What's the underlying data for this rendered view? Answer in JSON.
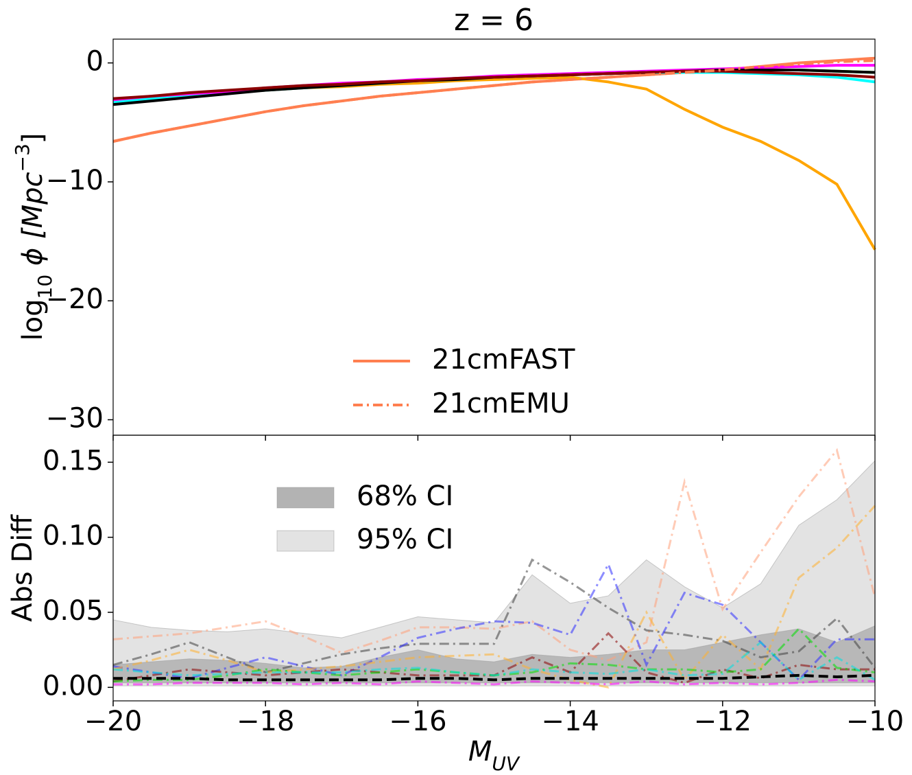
{
  "chart_data": [
    {
      "type": "line",
      "title": "z = 6",
      "ylabel": [
        "log",
        "10",
        " ϕ [Mpc",
        "−3",
        "]"
      ],
      "x": [
        -20,
        -19.5,
        -19,
        -18.5,
        -18,
        -17.5,
        -17,
        -16.5,
        -16,
        -15.5,
        -15,
        -14.5,
        -14,
        -13.5,
        -13,
        -12.5,
        -12,
        -11.5,
        -11,
        -10.5,
        -10
      ],
      "xlim": [
        -20,
        -10
      ],
      "ylim": [
        -31.3,
        2
      ],
      "yticks": [
        {
          "value": 0,
          "label": "0"
        },
        {
          "value": -10,
          "label": "−10"
        },
        {
          "value": -20,
          "label": "−20"
        },
        {
          "value": -30,
          "label": "−30"
        }
      ],
      "legend": "lower center",
      "series": [
        {
          "name": "21cmFAST",
          "color": "#ff7f50",
          "style": "solid",
          "values": [
            -6.6,
            -5.9,
            -5.3,
            -4.7,
            -4.1,
            -3.6,
            -3.2,
            -2.8,
            -2.5,
            -2.2,
            -1.9,
            -1.6,
            -1.4,
            -1.2,
            -1.0,
            -0.8,
            -0.6,
            -0.3,
            0.0,
            0.2,
            0.4
          ]
        },
        {
          "color": "#ffa500",
          "style": "solid",
          "values": [
            -3.1,
            -2.9,
            -2.7,
            -2.5,
            -2.3,
            -2.1,
            -2.0,
            -1.8,
            -1.7,
            -1.5,
            -1.4,
            -1.3,
            -1.2,
            -1.6,
            -2.2,
            -3.9,
            -5.4,
            -6.6,
            -8.2,
            -10.2,
            -15.7
          ]
        },
        {
          "color": "#00ff00",
          "style": "solid",
          "values": [
            -3.2,
            -2.9,
            -2.7,
            -2.4,
            -2.2,
            -2.0,
            -1.8,
            -1.6,
            -1.5,
            -1.3,
            -1.2,
            -1.1,
            -1.0,
            -0.9,
            -0.8,
            -0.7,
            -0.6,
            -0.6,
            -0.6,
            -0.7,
            -0.8
          ]
        },
        {
          "color": "#00ffff",
          "style": "solid",
          "values": [
            -3.3,
            -3.0,
            -2.7,
            -2.5,
            -2.3,
            -2.1,
            -1.9,
            -1.7,
            -1.5,
            -1.4,
            -1.2,
            -1.1,
            -1.0,
            -0.9,
            -0.8,
            -0.8,
            -0.8,
            -0.9,
            -1.0,
            -1.2,
            -1.6
          ]
        },
        {
          "color": "#ff00ff",
          "style": "solid",
          "values": [
            -3.1,
            -2.8,
            -2.6,
            -2.4,
            -2.1,
            -1.9,
            -1.7,
            -1.6,
            -1.4,
            -1.3,
            -1.1,
            -1.0,
            -0.9,
            -0.8,
            -0.7,
            -0.6,
            -0.5,
            -0.4,
            -0.3,
            -0.2,
            -0.2
          ]
        },
        {
          "color": "#000000",
          "style": "solid",
          "values": [
            -3.5,
            -3.2,
            -2.9,
            -2.6,
            -2.3,
            -2.1,
            -1.9,
            -1.7,
            -1.5,
            -1.4,
            -1.2,
            -1.1,
            -1.0,
            -0.9,
            -0.8,
            -0.7,
            -0.6,
            -0.6,
            -0.6,
            -0.7,
            -0.8
          ]
        },
        {
          "color": "#8b0000",
          "style": "solid",
          "values": [
            -3.0,
            -2.8,
            -2.5,
            -2.3,
            -2.1,
            -1.9,
            -1.8,
            -1.6,
            -1.5,
            -1.3,
            -1.2,
            -1.1,
            -1.0,
            -0.9,
            -0.8,
            -0.7,
            -0.7,
            -0.8,
            -0.9,
            -1.0,
            -1.2
          ]
        },
        {
          "name": "21cmEMU",
          "color": "#ff7f50",
          "style": "dashdot",
          "values": [
            -6.6,
            -5.9,
            -5.3,
            -4.7,
            -4.1,
            -3.6,
            -3.2,
            -2.8,
            -2.5,
            -2.2,
            -1.9,
            -1.6,
            -1.4,
            -1.2,
            -1.0,
            -0.8,
            -0.6,
            -0.3,
            -0.1,
            0.1,
            0.2
          ]
        }
      ]
    },
    {
      "type": "line",
      "xlabel": [
        "M",
        "UV"
      ],
      "ylabel": "Abs Diff",
      "x": [
        -20,
        -19.5,
        -19,
        -18.5,
        -18,
        -17.5,
        -17,
        -16.5,
        -16,
        -15.5,
        -15,
        -14.5,
        -14,
        -13.5,
        -13,
        -12.5,
        -12,
        -11.5,
        -11,
        -10.5,
        -10
      ],
      "xlim": [
        -20,
        -10
      ],
      "xticks": [
        {
          "value": -20,
          "label": "−20"
        },
        {
          "value": -18,
          "label": "−18"
        },
        {
          "value": -16,
          "label": "−16"
        },
        {
          "value": -14,
          "label": "−14"
        },
        {
          "value": -12,
          "label": "−12"
        },
        {
          "value": -10,
          "label": "−10"
        }
      ],
      "ylim": [
        -0.009,
        0.168
      ],
      "yticks": [
        {
          "value": 0,
          "label": "0.00"
        },
        {
          "value": 0.05,
          "label": "0.05"
        },
        {
          "value": 0.1,
          "label": "0.10"
        },
        {
          "value": 0.15,
          "label": "0.15"
        }
      ],
      "legend": "upper left",
      "bands": [
        {
          "name": "68% CI",
          "color": "#b3b3b3",
          "lower": [
            0.003,
            0.003,
            0.003,
            0.003,
            0.003,
            0.003,
            0.003,
            0.003,
            0.003,
            0.003,
            0.003,
            0.003,
            0.003,
            0.003,
            0.003,
            0.003,
            0.003,
            0.003,
            0.003,
            0.003,
            0.003
          ],
          "upper": [
            0.015,
            0.017,
            0.019,
            0.018,
            0.016,
            0.013,
            0.014,
            0.02,
            0.025,
            0.019,
            0.017,
            0.022,
            0.02,
            0.022,
            0.025,
            0.025,
            0.03,
            0.035,
            0.039,
            0.03,
            0.041
          ]
        },
        {
          "name": "95% CI",
          "color": "#e3e3e3",
          "lower": [
            0.001,
            0.001,
            0.001,
            0.001,
            0.001,
            0.001,
            0.001,
            0.001,
            0.001,
            0.001,
            0.001,
            0.001,
            0.001,
            0.001,
            0.001,
            0.001,
            0.001,
            0.001,
            0.001,
            0.001,
            0.001
          ],
          "upper": [
            0.045,
            0.04,
            0.038,
            0.037,
            0.039,
            0.036,
            0.033,
            0.04,
            0.047,
            0.045,
            0.043,
            0.075,
            0.056,
            0.061,
            0.085,
            0.067,
            0.053,
            0.069,
            0.108,
            0.125,
            0.151
          ]
        }
      ],
      "series": [
        {
          "color": "#ffa07a",
          "style": "dashdot",
          "values": [
            0.032,
            0.034,
            0.036,
            0.04,
            0.044,
            0.034,
            0.023,
            0.031,
            0.04,
            0.04,
            0.039,
            0.044,
            0.025,
            0.018,
            0.03,
            0.137,
            0.052,
            0.09,
            0.127,
            0.158,
            0.06
          ]
        },
        {
          "color": "#404040",
          "style": "dashdot",
          "values": [
            0.015,
            0.022,
            0.03,
            0.02,
            0.01,
            0.016,
            0.022,
            0.026,
            0.029,
            0.029,
            0.029,
            0.085,
            0.07,
            0.053,
            0.038,
            0.035,
            0.031,
            0.02,
            0.024,
            0.046,
            0.013
          ]
        },
        {
          "color": "#3030ff",
          "style": "dashdot",
          "values": [
            0.014,
            0.01,
            0.006,
            0.013,
            0.02,
            0.014,
            0.008,
            0.02,
            0.033,
            0.039,
            0.044,
            0.043,
            0.035,
            0.082,
            0.015,
            0.063,
            0.055,
            0.03,
            0.005,
            0.032,
            0.032
          ]
        },
        {
          "color": "#ffb030",
          "style": "dashdot",
          "values": [
            0.012,
            0.018,
            0.025,
            0.018,
            0.01,
            0.012,
            0.014,
            0.017,
            0.02,
            0.021,
            0.022,
            0.012,
            0.005,
            0.0,
            0.05,
            0.005,
            0.035,
            0.012,
            0.073,
            0.093,
            0.121
          ]
        },
        {
          "color": "#8b0000",
          "style": "dashdot",
          "values": [
            0.004,
            0.008,
            0.012,
            0.01,
            0.008,
            0.01,
            0.012,
            0.01,
            0.008,
            0.008,
            0.008,
            0.02,
            0.01,
            0.036,
            0.01,
            0.003,
            0.012,
            0.006,
            0.015,
            0.012,
            0.012
          ]
        },
        {
          "color": "#00e000",
          "style": "dashdot",
          "values": [
            0.004,
            0.005,
            0.005,
            0.008,
            0.012,
            0.01,
            0.008,
            0.01,
            0.012,
            0.01,
            0.008,
            0.01,
            0.016,
            0.015,
            0.012,
            0.012,
            0.01,
            0.012,
            0.039,
            0.013,
            0.01
          ]
        },
        {
          "color": "#00e0e0",
          "style": "dashdot",
          "values": [
            0.012,
            0.01,
            0.008,
            0.009,
            0.01,
            0.01,
            0.01,
            0.012,
            0.013,
            0.01,
            0.008,
            0.012,
            0.01,
            0.009,
            0.012,
            0.008,
            0.009,
            0.03,
            0.005,
            0.02,
            0.005
          ]
        },
        {
          "color": "#ff00ff",
          "style": "dashdot",
          "values": [
            0.002,
            0.002,
            0.003,
            0.003,
            0.003,
            0.002,
            0.003,
            0.002,
            0.004,
            0.003,
            0.002,
            0.004,
            0.003,
            0.002,
            0.004,
            0.002,
            0.003,
            0.002,
            0.003,
            0.005,
            0.004
          ]
        },
        {
          "color": "#000000",
          "style": "dashed",
          "values": [
            0.006,
            0.006,
            0.006,
            0.005,
            0.005,
            0.005,
            0.005,
            0.005,
            0.006,
            0.006,
            0.005,
            0.006,
            0.006,
            0.006,
            0.006,
            0.006,
            0.006,
            0.007,
            0.008,
            0.007,
            0.008
          ]
        }
      ]
    }
  ]
}
